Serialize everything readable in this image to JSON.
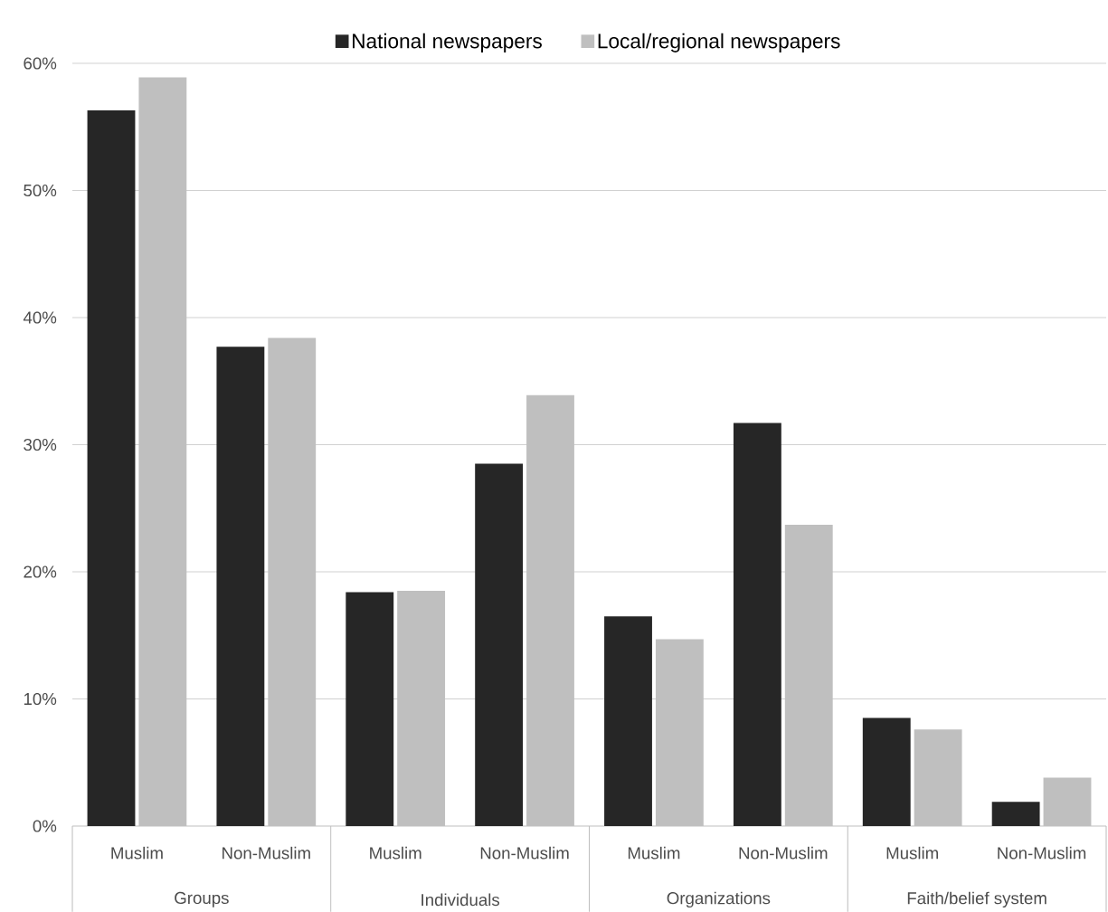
{
  "chart_data": {
    "type": "bar",
    "categories": [
      "Muslim",
      "Non-Muslim",
      "Muslim",
      "Non-Muslim",
      "Muslim",
      "Non-Muslim",
      "Muslim",
      "Non-Muslim"
    ],
    "series": [
      {
        "name": "National newspapers",
        "color": "#262626",
        "values": [
          56.3,
          37.7,
          18.4,
          28.5,
          16.5,
          31.7,
          8.5,
          1.9
        ]
      },
      {
        "name": "Local/regional newspapers",
        "color": "#bfbfbf",
        "values": [
          58.9,
          38.4,
          18.5,
          33.9,
          14.7,
          23.7,
          7.6,
          3.8
        ]
      }
    ],
    "annotations": [
      "Groups",
      "Individuals",
      "Organizations",
      "Faith/belief system"
    ],
    "ylim": [
      0,
      60
    ],
    "yticks": [
      {
        "value": 0,
        "label": "0%"
      },
      {
        "value": 10,
        "label": "10%"
      },
      {
        "value": 20,
        "label": "20%"
      },
      {
        "value": 30,
        "label": "30%"
      },
      {
        "value": 40,
        "label": "40%"
      },
      {
        "value": 50,
        "label": "50%"
      },
      {
        "value": 60,
        "label": "60%"
      }
    ],
    "grid": "y",
    "legend": "top"
  }
}
